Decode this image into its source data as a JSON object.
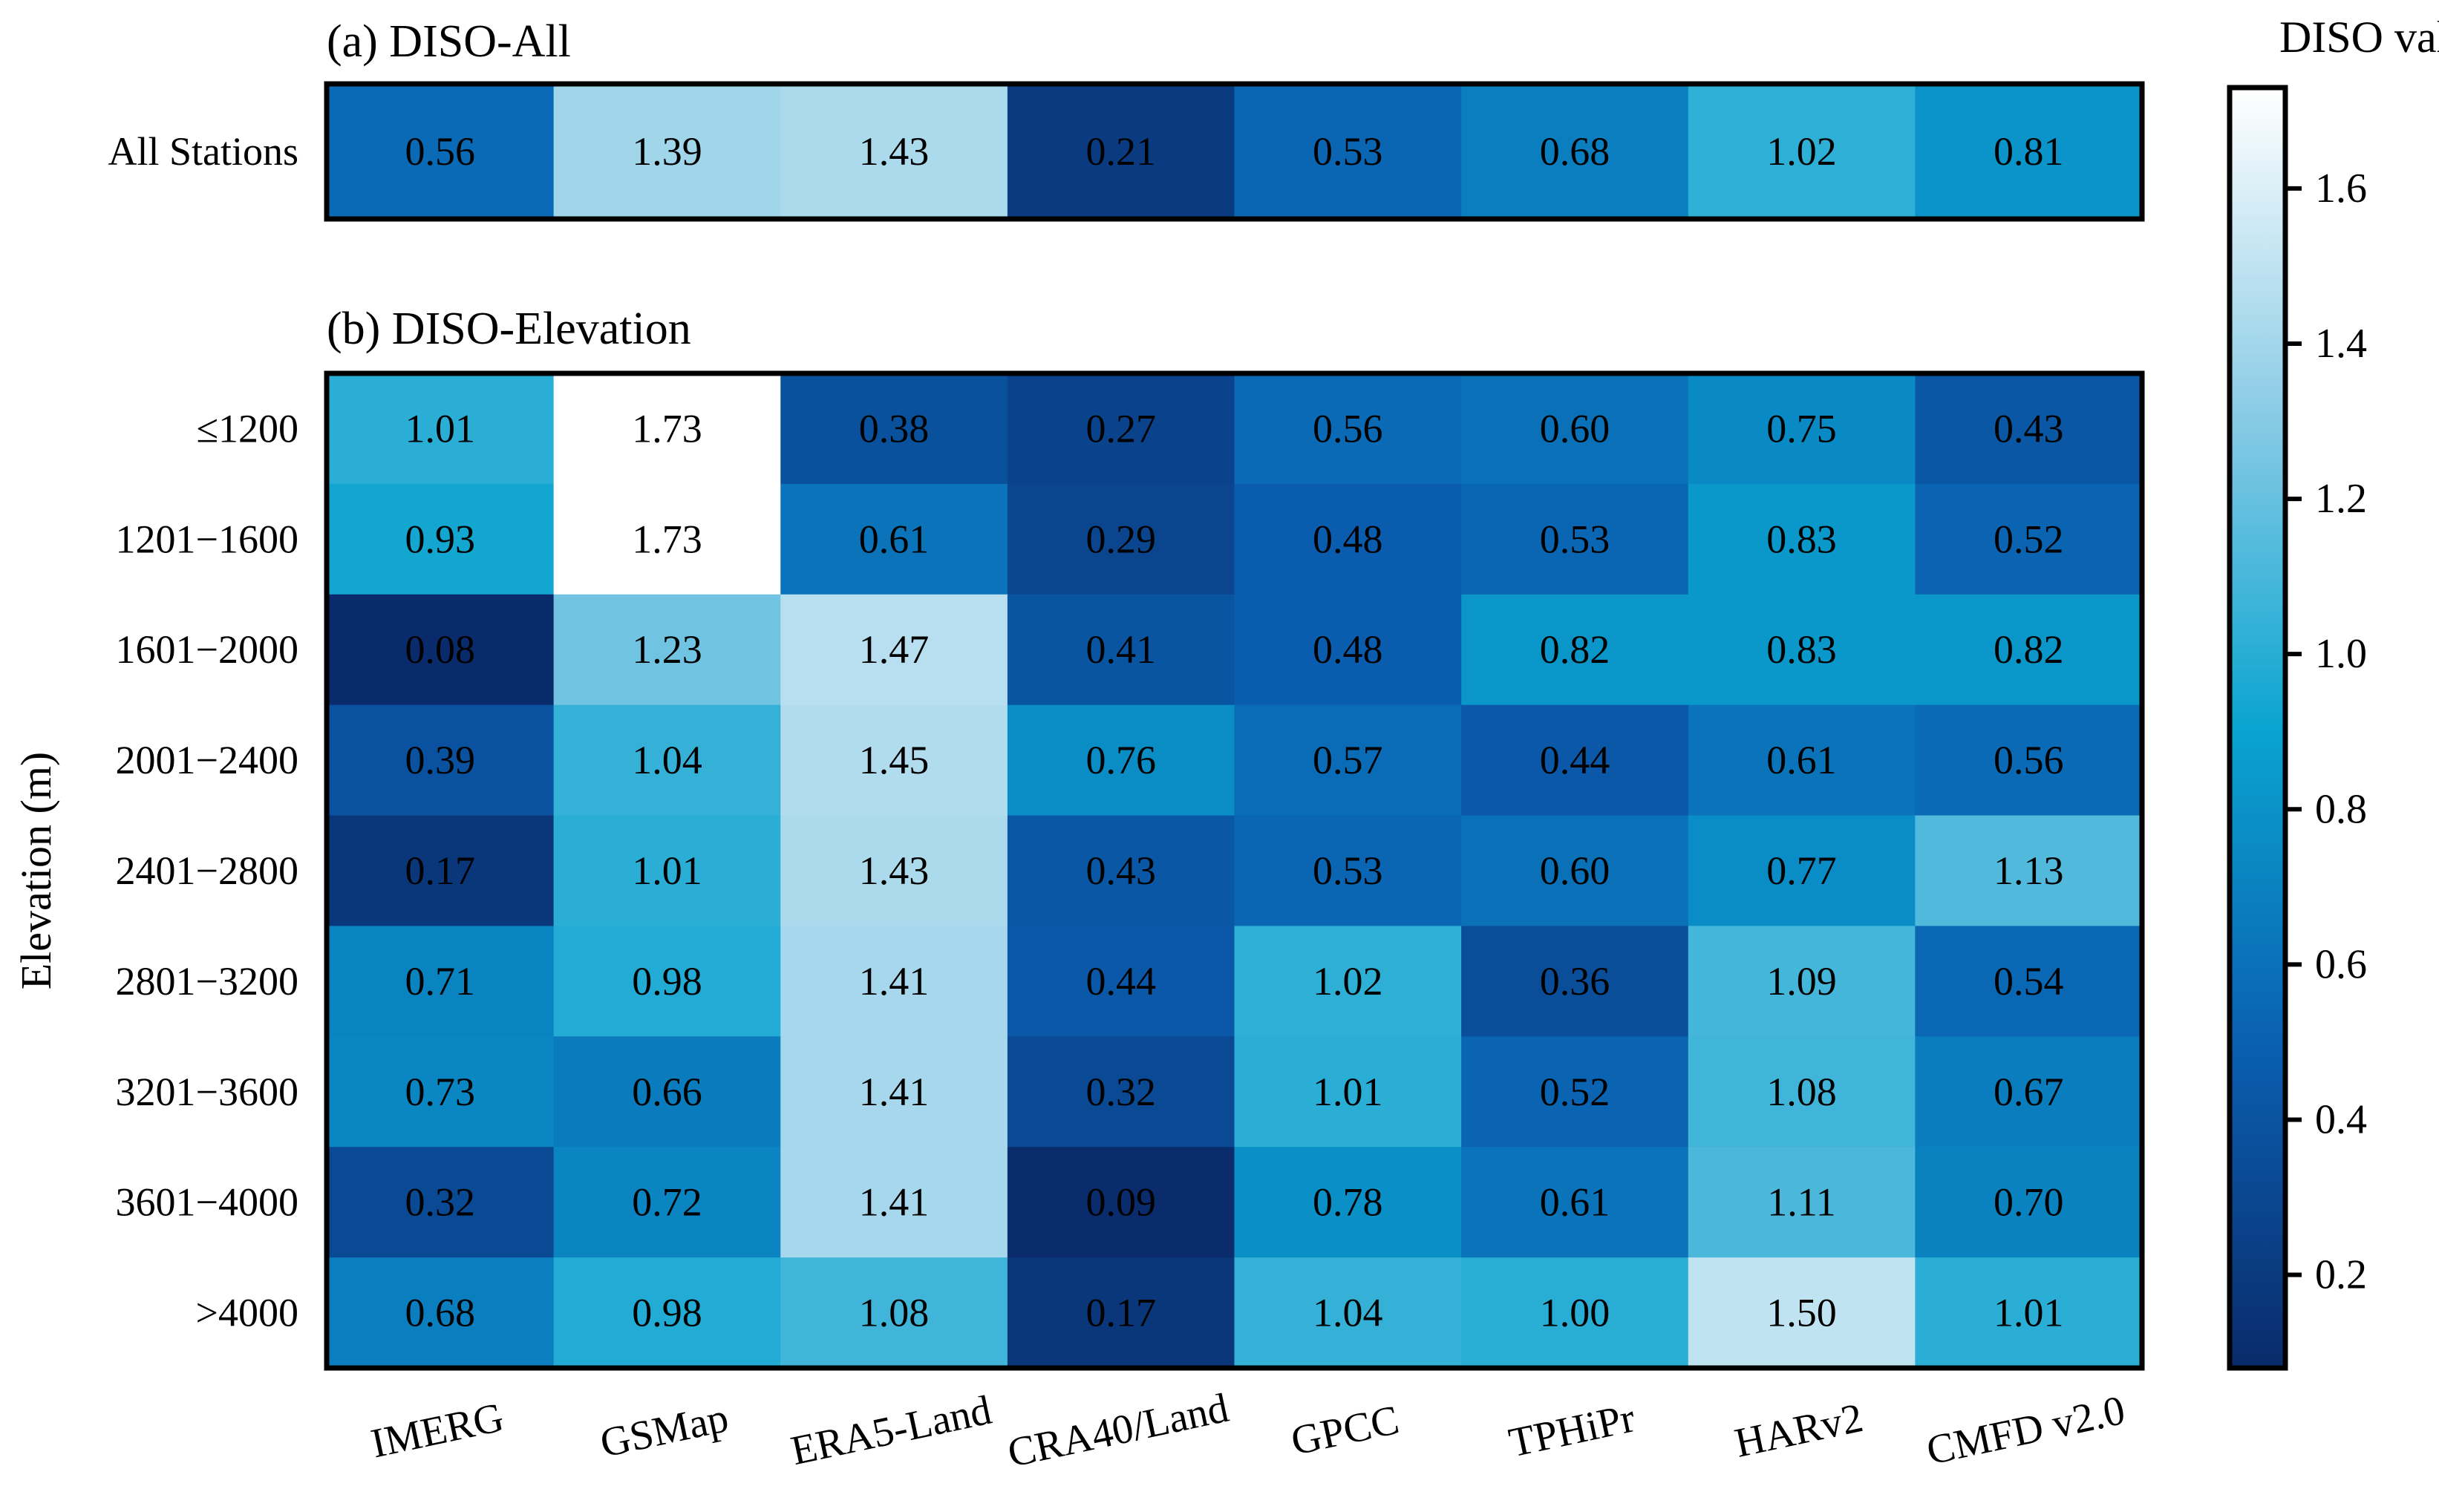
{
  "chart_data": {
    "type": "heatmap",
    "columns": [
      "IMERG",
      "GSMap",
      "ERA5-Land",
      "CRA40/Land",
      "GPCC",
      "TPHiPr",
      "HARv2",
      "CMFD v2.0"
    ],
    "panels": [
      {
        "title": "(a) DISO-All",
        "rows": [
          "All Stations"
        ],
        "values": [
          [
            0.56,
            1.39,
            1.43,
            0.21,
            0.53,
            0.68,
            1.02,
            0.81
          ]
        ]
      },
      {
        "title": "(b) DISO-Elevation",
        "ylabel": "Elevation (m)",
        "rows": [
          "≤1200",
          "1201−1600",
          "1601−2000",
          "2001−2400",
          "2401−2800",
          "2801−3200",
          "3201−3600",
          "3601−4000",
          ">4000"
        ],
        "values": [
          [
            1.01,
            1.73,
            0.38,
            0.27,
            0.56,
            0.6,
            0.75,
            0.43
          ],
          [
            0.93,
            1.73,
            0.61,
            0.29,
            0.48,
            0.53,
            0.83,
            0.52
          ],
          [
            0.08,
            1.23,
            1.47,
            0.41,
            0.48,
            0.82,
            0.83,
            0.82
          ],
          [
            0.39,
            1.04,
            1.45,
            0.76,
            0.57,
            0.44,
            0.61,
            0.56
          ],
          [
            0.17,
            1.01,
            1.43,
            0.43,
            0.53,
            0.6,
            0.77,
            1.13
          ],
          [
            0.71,
            0.98,
            1.41,
            0.44,
            1.02,
            0.36,
            1.09,
            0.54
          ],
          [
            0.73,
            0.66,
            1.41,
            0.32,
            1.01,
            0.52,
            1.08,
            0.67
          ],
          [
            0.32,
            0.72,
            1.41,
            0.09,
            0.78,
            0.61,
            1.11,
            0.7
          ],
          [
            0.68,
            0.98,
            1.08,
            0.17,
            1.04,
            1.0,
            1.5,
            1.01
          ]
        ]
      }
    ],
    "colorbar": {
      "title": "DISO value",
      "range": [
        0.08,
        1.73
      ],
      "ticks": [
        0.2,
        0.4,
        0.6,
        0.8,
        1.0,
        1.2,
        1.4,
        1.6
      ],
      "tick_labels": [
        "0.2",
        "0.4",
        "0.6",
        "0.8",
        "1.0",
        "1.2",
        "1.4",
        "1.6"
      ],
      "colormap": {
        "stops": [
          0.0,
          0.25,
          0.5,
          0.75,
          1.0
        ],
        "colors": [
          "#0a2b6b",
          "#0a5fb0",
          "#0aa4d0",
          "#8ccce6",
          "#ffffff"
        ]
      }
    }
  }
}
